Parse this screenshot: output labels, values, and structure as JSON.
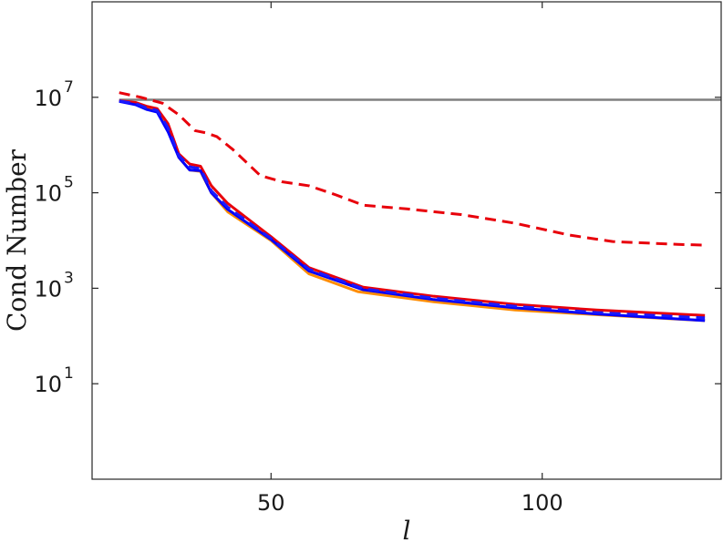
{
  "chart_data": {
    "type": "line",
    "xlabel": "l",
    "ylabel": "Cond Number",
    "xlim": [
      17,
      133
    ],
    "ylim_log10": [
      -1,
      9
    ],
    "y_scale": "log",
    "grid": false,
    "legend": "none",
    "x_ticks": [
      {
        "value": 50,
        "label": "50"
      },
      {
        "value": 100,
        "label": "100"
      }
    ],
    "y_ticks": [
      {
        "log10": 1,
        "base": "10",
        "exp": "1"
      },
      {
        "log10": 3,
        "base": "10",
        "exp": "3"
      },
      {
        "log10": 5,
        "base": "10",
        "exp": "5"
      },
      {
        "log10": 7,
        "base": "10",
        "exp": "7"
      }
    ],
    "series": [
      {
        "color": "#808080",
        "style": "solid",
        "points": [
          [
            22,
            8900000.0
          ],
          [
            133,
            8900000.0
          ]
        ]
      },
      {
        "color": "#e8000b",
        "style": "dashed",
        "points": [
          [
            22,
            12500000.0
          ],
          [
            26,
            10000000.0
          ],
          [
            30,
            7500000.0
          ],
          [
            33,
            4300000.0
          ],
          [
            36,
            2000000.0
          ],
          [
            38,
            1800000.0
          ],
          [
            40,
            1500000.0
          ],
          [
            43,
            800000.0
          ],
          [
            48,
            230000.0
          ],
          [
            52,
            170000.0
          ],
          [
            57,
            140000.0
          ],
          [
            62,
            90000.0
          ],
          [
            67,
            55000.0
          ],
          [
            75,
            46000.0
          ],
          [
            85,
            35000.0
          ],
          [
            95,
            23000.0
          ],
          [
            105,
            13000.0
          ],
          [
            113,
            9500.0
          ],
          [
            125,
            8300.0
          ],
          [
            130,
            8000.0
          ]
        ]
      },
      {
        "color": "#ff8c00",
        "style": "solid",
        "points": [
          [
            22,
            8300000.0
          ],
          [
            25,
            7500000.0
          ],
          [
            27,
            5800000.0
          ],
          [
            29,
            5100000.0
          ],
          [
            31,
            2200000.0
          ],
          [
            33,
            550000.0
          ],
          [
            35,
            300000.0
          ],
          [
            37,
            280000.0
          ],
          [
            39,
            100000.0
          ],
          [
            42,
            40000.0
          ],
          [
            50,
            10000.0
          ],
          [
            57,
            2000.0
          ],
          [
            66,
            850.0
          ],
          [
            80,
            520.0
          ],
          [
            95,
            350.0
          ],
          [
            110,
            280.0
          ],
          [
            130,
            210.0
          ]
        ]
      },
      {
        "color": "#e8000b",
        "style": "solid",
        "points": [
          [
            22,
            8500000.0
          ],
          [
            25,
            7800000.0
          ],
          [
            27,
            6500000.0
          ],
          [
            29,
            5800000.0
          ],
          [
            31,
            2800000.0
          ],
          [
            33,
            650000.0
          ],
          [
            35,
            400000.0
          ],
          [
            37,
            360000.0
          ],
          [
            39,
            140000.0
          ],
          [
            42,
            60000.0
          ],
          [
            50,
            12000.0
          ],
          [
            57,
            2700.0
          ],
          [
            67,
            1050.0
          ],
          [
            80,
            680.0
          ],
          [
            95,
            460.0
          ],
          [
            110,
            350.0
          ],
          [
            130,
            270.0
          ]
        ]
      },
      {
        "color": "#0000ff",
        "style": "solid",
        "points": [
          [
            22,
            8200000.0
          ],
          [
            25,
            7000000.0
          ],
          [
            27,
            5600000.0
          ],
          [
            29,
            4900000.0
          ],
          [
            31,
            1900000.0
          ],
          [
            33,
            550000.0
          ],
          [
            35,
            300000.0
          ],
          [
            37,
            290000.0
          ],
          [
            39,
            100000.0
          ],
          [
            42,
            45000.0
          ],
          [
            50,
            10500.0
          ],
          [
            57,
            2300.0
          ],
          [
            67,
            930.0
          ],
          [
            80,
            580.0
          ],
          [
            95,
            390.0
          ],
          [
            110,
            290.0
          ],
          [
            130,
            210.0
          ]
        ]
      },
      {
        "color": "#1a1aff",
        "style": "dashed",
        "points": [
          [
            22,
            8400000.0
          ],
          [
            25,
            7400000.0
          ],
          [
            27,
            6000000.0
          ],
          [
            29,
            5300000.0
          ],
          [
            31,
            2300000.0
          ],
          [
            33,
            600000.0
          ],
          [
            35,
            350000.0
          ],
          [
            37,
            320000.0
          ],
          [
            39,
            110000.0
          ],
          [
            42,
            50000.0
          ],
          [
            50,
            11000.0
          ],
          [
            57,
            2500.0
          ],
          [
            67,
            980.0
          ],
          [
            80,
            620.0
          ],
          [
            95,
            420.0
          ],
          [
            110,
            310.0
          ],
          [
            130,
            240.0
          ]
        ]
      }
    ]
  }
}
